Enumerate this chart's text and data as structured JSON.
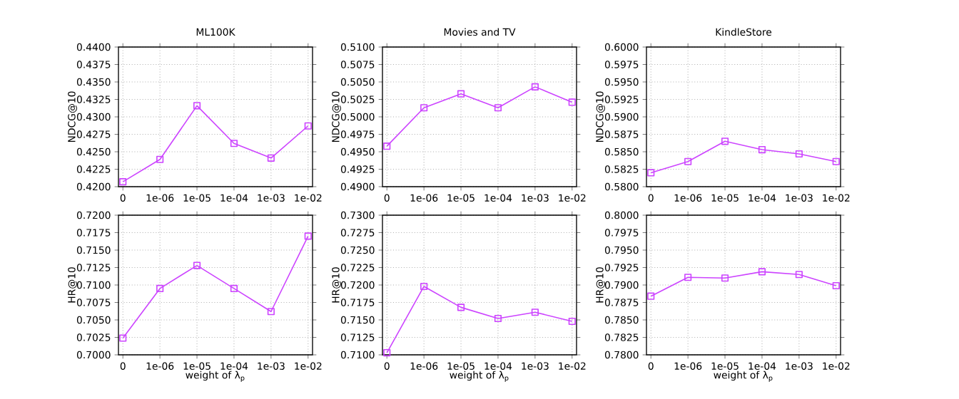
{
  "chart_data": [
    {
      "type": "line",
      "title": "ML100K",
      "ylabel": "NDCG@10",
      "categories": [
        "0",
        "1e-06",
        "1e-05",
        "1e-04",
        "1e-03",
        "1e-02"
      ],
      "series": [
        {
          "color": "#cc44ff",
          "values": [
            0.4207,
            0.4239,
            0.4316,
            0.4262,
            0.4241,
            0.4287
          ]
        }
      ],
      "ylim": [
        0.42,
        0.44
      ],
      "yticks": [
        {
          "value": 0.42,
          "label": "0.4200"
        },
        {
          "value": 0.4225,
          "label": "0.4225"
        },
        {
          "value": 0.425,
          "label": "0.4250"
        },
        {
          "value": 0.4275,
          "label": "0.4275"
        },
        {
          "value": 0.43,
          "label": "0.4300"
        },
        {
          "value": 0.4325,
          "label": "0.4325"
        },
        {
          "value": 0.435,
          "label": "0.4350"
        },
        {
          "value": 0.4375,
          "label": "0.4375"
        },
        {
          "value": 0.44,
          "label": "0.4400"
        }
      ],
      "grid": true,
      "marker": "square",
      "line_style": "solid"
    },
    {
      "type": "line",
      "title": "Movies and TV",
      "ylabel": "NDCG@10",
      "categories": [
        "0",
        "1e-06",
        "1e-05",
        "1e-04",
        "1e-03",
        "1e-02"
      ],
      "series": [
        {
          "color": "#cc44ff",
          "values": [
            0.4958,
            0.5013,
            0.5033,
            0.5013,
            0.5043,
            0.5021
          ]
        }
      ],
      "ylim": [
        0.49,
        0.51
      ],
      "yticks": [
        {
          "value": 0.49,
          "label": "0.4900"
        },
        {
          "value": 0.4925,
          "label": "0.4925"
        },
        {
          "value": 0.495,
          "label": "0.4950"
        },
        {
          "value": 0.4975,
          "label": "0.4975"
        },
        {
          "value": 0.5,
          "label": "0.5000"
        },
        {
          "value": 0.5025,
          "label": "0.5025"
        },
        {
          "value": 0.505,
          "label": "0.5050"
        },
        {
          "value": 0.5075,
          "label": "0.5075"
        },
        {
          "value": 0.51,
          "label": "0.5100"
        }
      ],
      "grid": true,
      "marker": "square",
      "line_style": "solid"
    },
    {
      "type": "line",
      "title": "KindleStore",
      "ylabel": "NDCG@10",
      "categories": [
        "0",
        "1e-06",
        "1e-05",
        "1e-04",
        "1e-03",
        "1e-02"
      ],
      "series": [
        {
          "color": "#cc44ff",
          "values": [
            0.582,
            0.5836,
            0.5865,
            0.5853,
            0.5847,
            0.5836
          ]
        }
      ],
      "ylim": [
        0.58,
        0.6
      ],
      "yticks": [
        {
          "value": 0.58,
          "label": "0.5800"
        },
        {
          "value": 0.5825,
          "label": "0.5825"
        },
        {
          "value": 0.585,
          "label": "0.5850"
        },
        {
          "value": 0.5875,
          "label": "0.5875"
        },
        {
          "value": 0.59,
          "label": "0.5900"
        },
        {
          "value": 0.5925,
          "label": "0.5925"
        },
        {
          "value": 0.595,
          "label": "0.5950"
        },
        {
          "value": 0.5975,
          "label": "0.5975"
        },
        {
          "value": 0.6,
          "label": "0.6000"
        }
      ],
      "grid": true,
      "marker": "square",
      "line_style": "solid"
    },
    {
      "type": "line",
      "xlabel": "weight of λ$_{p}$",
      "ylabel": "HR@10",
      "categories": [
        "0",
        "1e-06",
        "1e-05",
        "1e-04",
        "1e-03",
        "1e-02"
      ],
      "series": [
        {
          "color": "#cc44ff",
          "values": [
            0.7024,
            0.7095,
            0.7128,
            0.7095,
            0.7062,
            0.717
          ]
        }
      ],
      "ylim": [
        0.7,
        0.72
      ],
      "yticks": [
        {
          "value": 0.7,
          "label": "0.7000"
        },
        {
          "value": 0.7025,
          "label": "0.7025"
        },
        {
          "value": 0.705,
          "label": "0.7050"
        },
        {
          "value": 0.7075,
          "label": "0.7075"
        },
        {
          "value": 0.71,
          "label": "0.7100"
        },
        {
          "value": 0.7125,
          "label": "0.7125"
        },
        {
          "value": 0.715,
          "label": "0.7150"
        },
        {
          "value": 0.7175,
          "label": "0.7175"
        },
        {
          "value": 0.72,
          "label": "0.7200"
        }
      ],
      "grid": true,
      "marker": "square",
      "line_style": "solid"
    },
    {
      "type": "line",
      "xlabel": "weight of λ$_{p}$",
      "ylabel": "HR@10",
      "categories": [
        "0",
        "1e-06",
        "1e-05",
        "1e-04",
        "1e-03",
        "1e-02"
      ],
      "series": [
        {
          "color": "#cc44ff",
          "values": [
            0.7103,
            0.7198,
            0.7168,
            0.7152,
            0.7161,
            0.7148
          ]
        }
      ],
      "ylim": [
        0.71,
        0.73
      ],
      "yticks": [
        {
          "value": 0.71,
          "label": "0.7100"
        },
        {
          "value": 0.7125,
          "label": "0.7125"
        },
        {
          "value": 0.715,
          "label": "0.7150"
        },
        {
          "value": 0.7175,
          "label": "0.7175"
        },
        {
          "value": 0.72,
          "label": "0.7200"
        },
        {
          "value": 0.7225,
          "label": "0.7225"
        },
        {
          "value": 0.725,
          "label": "0.7250"
        },
        {
          "value": 0.7275,
          "label": "0.7275"
        },
        {
          "value": 0.73,
          "label": "0.7300"
        }
      ],
      "grid": true,
      "marker": "square",
      "line_style": "solid"
    },
    {
      "type": "line",
      "xlabel": "weight of λ$_{p}$",
      "ylabel": "HR@10",
      "categories": [
        "0",
        "1e-06",
        "1e-05",
        "1e-04",
        "1e-03",
        "1e-02"
      ],
      "series": [
        {
          "color": "#cc44ff",
          "values": [
            0.7884,
            0.7911,
            0.791,
            0.7919,
            0.7915,
            0.7899
          ]
        }
      ],
      "ylim": [
        0.78,
        0.8
      ],
      "yticks": [
        {
          "value": 0.78,
          "label": "0.7800"
        },
        {
          "value": 0.7825,
          "label": "0.7825"
        },
        {
          "value": 0.785,
          "label": "0.7850"
        },
        {
          "value": 0.7875,
          "label": "0.7875"
        },
        {
          "value": 0.79,
          "label": "0.7900"
        },
        {
          "value": 0.7925,
          "label": "0.7925"
        },
        {
          "value": 0.795,
          "label": "0.7950"
        },
        {
          "value": 0.7975,
          "label": "0.7975"
        },
        {
          "value": 0.8,
          "label": "0.8000"
        }
      ],
      "grid": true,
      "marker": "square",
      "line_style": "solid"
    }
  ]
}
